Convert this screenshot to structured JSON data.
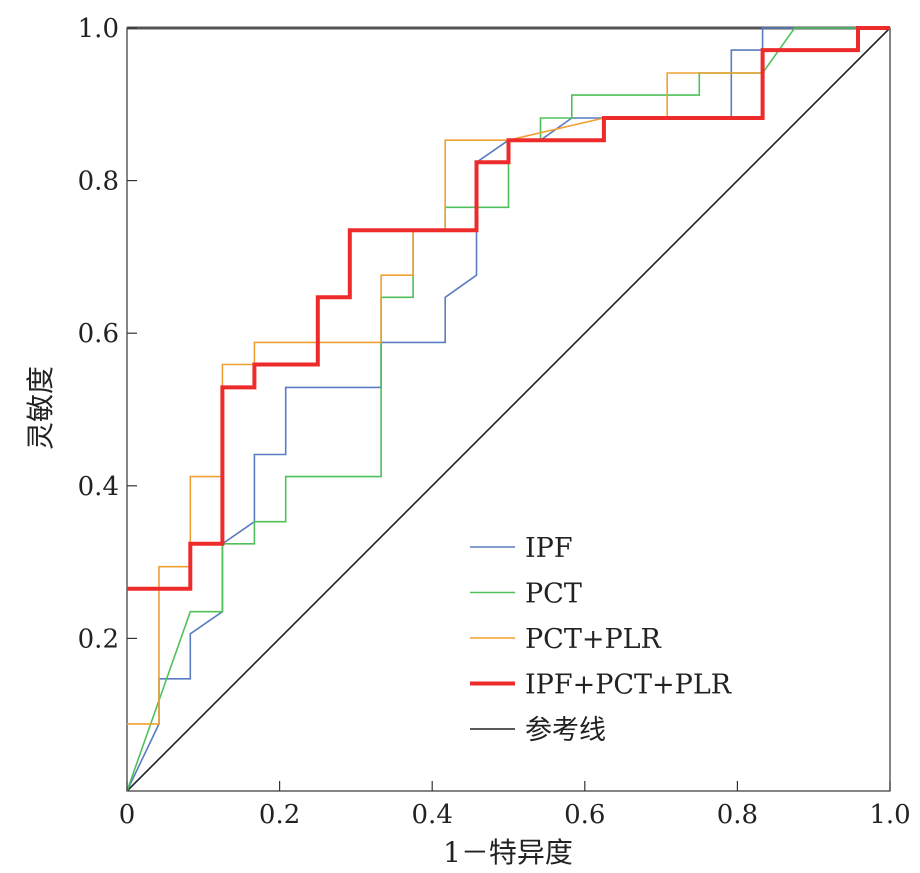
{
  "chart_data": {
    "type": "line",
    "xlabel": "1－特异度",
    "ylabel": "灵敏度",
    "xlim": [
      0,
      1
    ],
    "ylim": [
      0,
      1
    ],
    "x_ticks": [
      "0",
      "0.2",
      "0.4",
      "0.6",
      "0.8",
      "1.0"
    ],
    "y_ticks": [
      "0.2",
      "0.4",
      "0.6",
      "0.8",
      "1.0"
    ],
    "legend_position": "bottom-center",
    "series": [
      {
        "name": "IPF",
        "color": "#5a7cc0",
        "width": 1.6,
        "points": [
          [
            0,
            0
          ],
          [
            0.042,
            0.088
          ],
          [
            0.042,
            0.147
          ],
          [
            0.083,
            0.147
          ],
          [
            0.083,
            0.206
          ],
          [
            0.125,
            0.235
          ],
          [
            0.125,
            0.324
          ],
          [
            0.167,
            0.353
          ],
          [
            0.167,
            0.441
          ],
          [
            0.208,
            0.441
          ],
          [
            0.208,
            0.529
          ],
          [
            0.333,
            0.529
          ],
          [
            0.333,
            0.588
          ],
          [
            0.417,
            0.588
          ],
          [
            0.417,
            0.647
          ],
          [
            0.458,
            0.676
          ],
          [
            0.458,
            0.824
          ],
          [
            0.5,
            0.853
          ],
          [
            0.542,
            0.853
          ],
          [
            0.583,
            0.882
          ],
          [
            0.625,
            0.882
          ],
          [
            0.792,
            0.882
          ],
          [
            0.792,
            0.971
          ],
          [
            0.833,
            0.971
          ],
          [
            0.833,
            1.0
          ],
          [
            1.0,
            1.0
          ]
        ]
      },
      {
        "name": "PCT",
        "color": "#4fc05a",
        "width": 1.6,
        "points": [
          [
            0,
            0
          ],
          [
            0.083,
            0.235
          ],
          [
            0.125,
            0.235
          ],
          [
            0.125,
            0.324
          ],
          [
            0.167,
            0.324
          ],
          [
            0.167,
            0.353
          ],
          [
            0.208,
            0.353
          ],
          [
            0.208,
            0.412
          ],
          [
            0.333,
            0.412
          ],
          [
            0.333,
            0.647
          ],
          [
            0.375,
            0.647
          ],
          [
            0.375,
            0.735
          ],
          [
            0.417,
            0.735
          ],
          [
            0.417,
            0.765
          ],
          [
            0.5,
            0.765
          ],
          [
            0.5,
            0.853
          ],
          [
            0.542,
            0.853
          ],
          [
            0.542,
            0.882
          ],
          [
            0.583,
            0.882
          ],
          [
            0.583,
            0.912
          ],
          [
            0.75,
            0.912
          ],
          [
            0.75,
            0.941
          ],
          [
            0.833,
            0.941
          ],
          [
            0.875,
            1.0
          ],
          [
            1.0,
            1.0
          ]
        ]
      },
      {
        "name": "PCT+PLR",
        "color": "#f0a030",
        "width": 1.6,
        "points": [
          [
            0,
            0.088
          ],
          [
            0.042,
            0.088
          ],
          [
            0.042,
            0.294
          ],
          [
            0.083,
            0.294
          ],
          [
            0.083,
            0.412
          ],
          [
            0.125,
            0.412
          ],
          [
            0.125,
            0.559
          ],
          [
            0.167,
            0.559
          ],
          [
            0.167,
            0.588
          ],
          [
            0.333,
            0.588
          ],
          [
            0.333,
            0.676
          ],
          [
            0.375,
            0.676
          ],
          [
            0.375,
            0.735
          ],
          [
            0.417,
            0.735
          ],
          [
            0.417,
            0.853
          ],
          [
            0.5,
            0.853
          ],
          [
            0.625,
            0.882
          ],
          [
            0.708,
            0.882
          ],
          [
            0.708,
            0.941
          ],
          [
            0.833,
            0.941
          ],
          [
            0.833,
            0.971
          ],
          [
            0.958,
            0.971
          ],
          [
            0.958,
            1.0
          ],
          [
            1.0,
            1.0
          ]
        ]
      },
      {
        "name": "IPF+PCT+PLR",
        "color": "#ee2b2b",
        "width": 4,
        "points": [
          [
            0,
            0.265
          ],
          [
            0.083,
            0.265
          ],
          [
            0.083,
            0.324
          ],
          [
            0.125,
            0.324
          ],
          [
            0.125,
            0.529
          ],
          [
            0.167,
            0.529
          ],
          [
            0.167,
            0.559
          ],
          [
            0.25,
            0.559
          ],
          [
            0.25,
            0.647
          ],
          [
            0.292,
            0.647
          ],
          [
            0.292,
            0.735
          ],
          [
            0.458,
            0.735
          ],
          [
            0.458,
            0.824
          ],
          [
            0.5,
            0.824
          ],
          [
            0.5,
            0.853
          ],
          [
            0.625,
            0.853
          ],
          [
            0.625,
            0.882
          ],
          [
            0.833,
            0.882
          ],
          [
            0.833,
            0.971
          ],
          [
            0.958,
            0.971
          ],
          [
            0.958,
            1.0
          ],
          [
            1.0,
            1.0
          ]
        ]
      },
      {
        "name": "参考线",
        "color": "#222222",
        "width": 1.6,
        "points": [
          [
            0,
            0
          ],
          [
            1,
            1
          ]
        ]
      }
    ]
  }
}
